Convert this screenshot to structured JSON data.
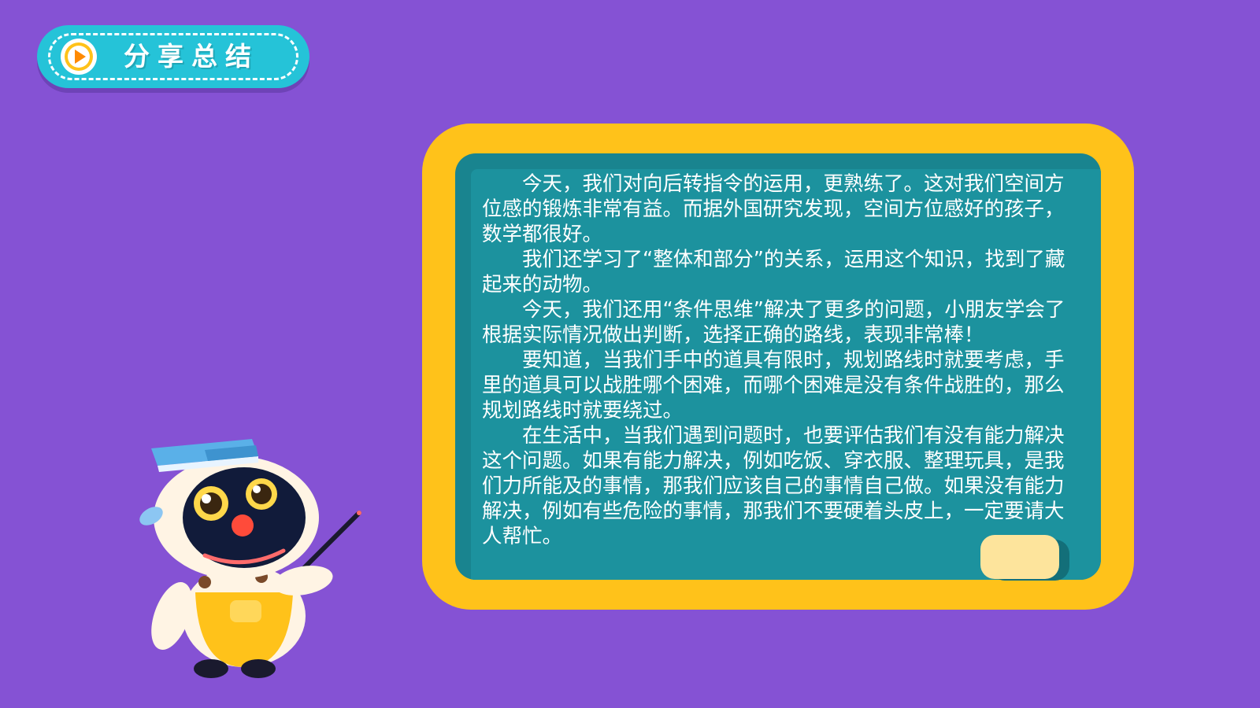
{
  "header": {
    "title": "分享总结",
    "icon": "play-icon"
  },
  "board": {
    "paragraphs": [
      "今天，我们对向后转指令的运用，更熟练了。这对我们空间方位感的锻炼非常有益。而据外国研究发现，空间方位感好的孩子，数学都很好。",
      "我们还学习了“整体和部分”的关系，运用这个知识，找到了藏起来的动物。",
      "今天，我们还用“条件思维”解决了更多的问题，小朋友学会了根据实际情况做出判断，选择正确的路线，表现非常棒！",
      "要知道，当我们手中的道具有限时，规划路线时就要考虑，手里的道具可以战胜哪个困难，而哪个困难是没有条件战胜的，那么规划路线时就要绕过。",
      "在生活中，当我们遇到问题时，也要评估我们有没有能力解决这个问题。如果有能力解决，例如吃饭、穿衣服、整理玩具，是我们力所能及的事情，那我们应该自己的事情自己做。如果没有能力解决，例如有些危险的事情，那我们不要硬着头皮上，一定要请大人帮忙。"
    ]
  },
  "colors": {
    "background": "#8552d4",
    "badge": "#25c3d8",
    "board_frame": "#ffc21a",
    "board_face": "#1c929e",
    "eraser": "#fde49c"
  }
}
